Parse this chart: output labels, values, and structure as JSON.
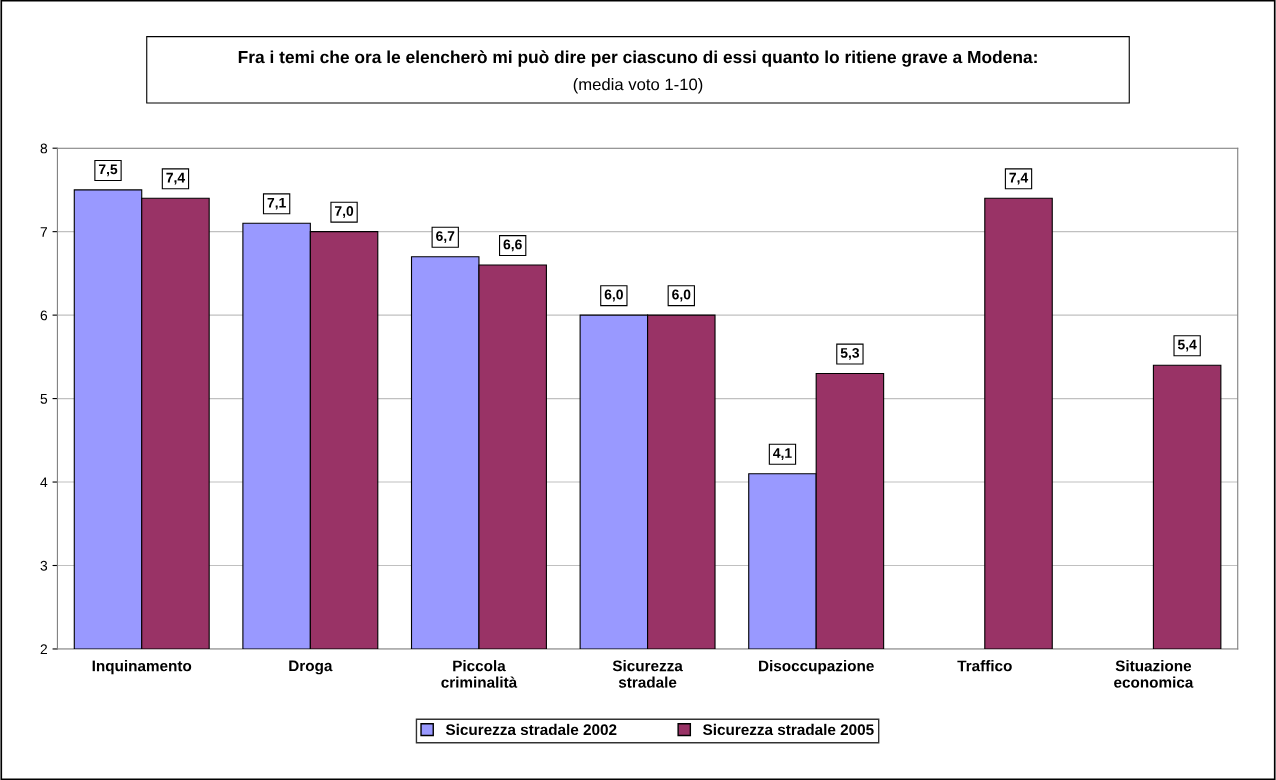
{
  "chart_data": {
    "type": "bar",
    "title": "Fra i temi che ora le elencherò mi può dire per ciascuno di essi quanto lo ritiene grave a Modena:",
    "subtitle": "(media voto 1-10)",
    "categories": [
      "Inquinamento",
      "Droga",
      "Piccola\ncriminalità",
      "Sicurezza\nstradale",
      "Disoccupazione",
      "Traffico",
      "Situazione\neconomica"
    ],
    "series": [
      {
        "name": "Sicurezza stradale 2002",
        "color": "#9999ff",
        "values": [
          7.5,
          7.1,
          6.7,
          6.0,
          4.1,
          null,
          null
        ],
        "value_labels": [
          "7,5",
          "7,1",
          "6,7",
          "6,0",
          "4,1",
          null,
          null
        ]
      },
      {
        "name": "Sicurezza stradale 2005",
        "color": "#993366",
        "values": [
          7.4,
          7.0,
          6.6,
          6.0,
          5.3,
          7.4,
          5.4
        ],
        "value_labels": [
          "7,4",
          "7,0",
          "6,6",
          "6,0",
          "5,3",
          "7,4",
          "5,4"
        ]
      }
    ],
    "ylim": [
      2,
      8
    ],
    "yticks": [
      2,
      3,
      4,
      5,
      6,
      7,
      8
    ],
    "grid": "y",
    "legend": "bottom"
  }
}
